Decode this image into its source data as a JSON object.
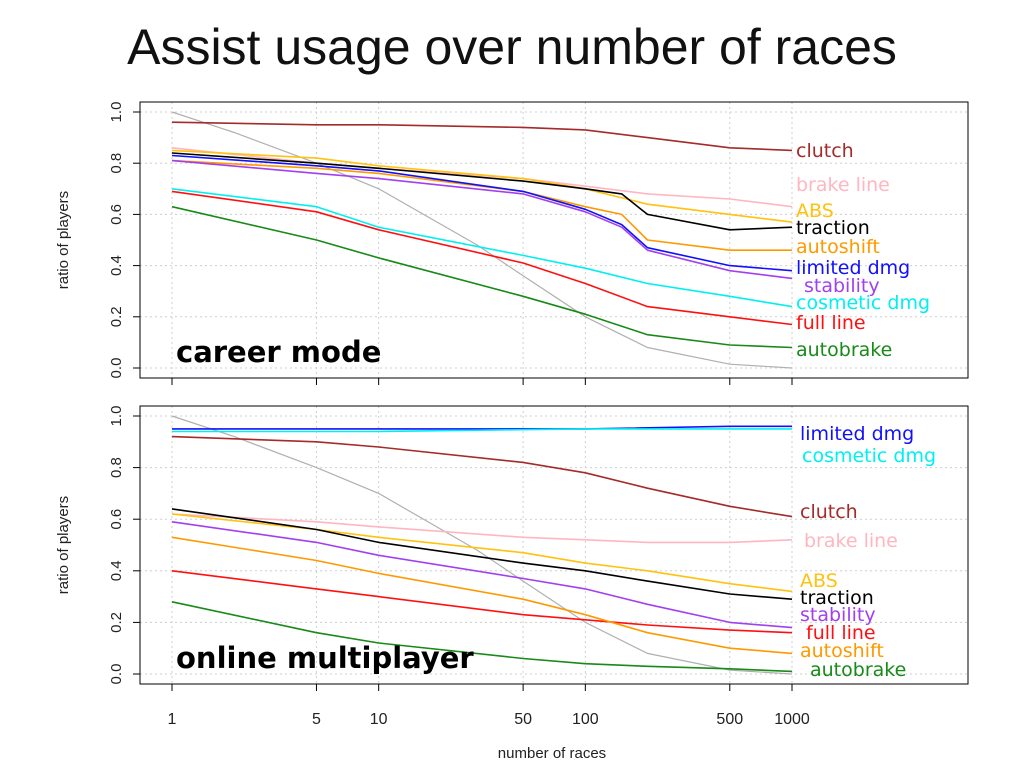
{
  "slide": {
    "title": "Assist usage over number of races"
  },
  "chart_data": {
    "type": "line",
    "x_scale": "log",
    "xlabel": "number of races",
    "x_ticks": [
      1,
      5,
      10,
      50,
      100,
      500,
      1000
    ],
    "xlim": [
      1,
      1000
    ],
    "ylim": [
      0,
      1
    ],
    "y_ticks": [
      "0.0",
      "0.2",
      "0.4",
      "0.6",
      "0.8",
      "1.0"
    ],
    "grid": true,
    "reference_line": {
      "color": "#b0b0b0",
      "points": [
        [
          1,
          1.0
        ],
        [
          2,
          0.92
        ],
        [
          5,
          0.8
        ],
        [
          10,
          0.7
        ],
        [
          30,
          0.48
        ],
        [
          50,
          0.36
        ],
        [
          100,
          0.2
        ],
        [
          200,
          0.08
        ],
        [
          500,
          0.015
        ],
        [
          1000,
          0.0
        ]
      ]
    },
    "panels": [
      {
        "label": "career mode",
        "ylabel": "ratio of players",
        "series": [
          {
            "name": "clutch",
            "color": "#a52a2a",
            "points": [
              [
                1,
                0.96
              ],
              [
                5,
                0.95
              ],
              [
                10,
                0.95
              ],
              [
                50,
                0.94
              ],
              [
                100,
                0.93
              ],
              [
                200,
                0.9
              ],
              [
                500,
                0.86
              ],
              [
                1000,
                0.85
              ]
            ]
          },
          {
            "name": "brake line",
            "color": "#ffb6c1",
            "points": [
              [
                1,
                0.86
              ],
              [
                5,
                0.8
              ],
              [
                10,
                0.78
              ],
              [
                50,
                0.74
              ],
              [
                100,
                0.71
              ],
              [
                200,
                0.68
              ],
              [
                500,
                0.66
              ],
              [
                1000,
                0.63
              ]
            ]
          },
          {
            "name": "ABS",
            "color": "#ffc20e",
            "points": [
              [
                1,
                0.85
              ],
              [
                5,
                0.82
              ],
              [
                10,
                0.79
              ],
              [
                50,
                0.74
              ],
              [
                100,
                0.7
              ],
              [
                200,
                0.64
              ],
              [
                500,
                0.6
              ],
              [
                1000,
                0.57
              ]
            ]
          },
          {
            "name": "traction",
            "color": "#000000",
            "points": [
              [
                1,
                0.84
              ],
              [
                5,
                0.8
              ],
              [
                10,
                0.78
              ],
              [
                50,
                0.73
              ],
              [
                100,
                0.7
              ],
              [
                150,
                0.68
              ],
              [
                200,
                0.6
              ],
              [
                500,
                0.54
              ],
              [
                1000,
                0.55
              ]
            ]
          },
          {
            "name": "autoshift",
            "color": "#ff9900",
            "points": [
              [
                1,
                0.81
              ],
              [
                5,
                0.78
              ],
              [
                10,
                0.76
              ],
              [
                50,
                0.69
              ],
              [
                100,
                0.63
              ],
              [
                150,
                0.6
              ],
              [
                200,
                0.5
              ],
              [
                500,
                0.46
              ],
              [
                1000,
                0.46
              ]
            ]
          },
          {
            "name": "limited dmg",
            "color": "#1010ff",
            "points": [
              [
                1,
                0.83
              ],
              [
                5,
                0.79
              ],
              [
                10,
                0.77
              ],
              [
                50,
                0.69
              ],
              [
                100,
                0.62
              ],
              [
                150,
                0.56
              ],
              [
                200,
                0.47
              ],
              [
                500,
                0.4
              ],
              [
                1000,
                0.38
              ]
            ]
          },
          {
            "name": "stability",
            "color": "#a040f0",
            "points": [
              [
                1,
                0.81
              ],
              [
                5,
                0.76
              ],
              [
                10,
                0.74
              ],
              [
                50,
                0.68
              ],
              [
                100,
                0.61
              ],
              [
                150,
                0.55
              ],
              [
                200,
                0.46
              ],
              [
                500,
                0.38
              ],
              [
                1000,
                0.35
              ]
            ]
          },
          {
            "name": "cosmetic dmg",
            "color": "#00f0f0",
            "points": [
              [
                1,
                0.7
              ],
              [
                5,
                0.63
              ],
              [
                10,
                0.55
              ],
              [
                50,
                0.44
              ],
              [
                100,
                0.39
              ],
              [
                200,
                0.33
              ],
              [
                500,
                0.28
              ],
              [
                1000,
                0.24
              ]
            ]
          },
          {
            "name": "full line",
            "color": "#ff1010",
            "points": [
              [
                1,
                0.69
              ],
              [
                5,
                0.61
              ],
              [
                10,
                0.54
              ],
              [
                50,
                0.41
              ],
              [
                100,
                0.33
              ],
              [
                200,
                0.24
              ],
              [
                500,
                0.2
              ],
              [
                1000,
                0.17
              ]
            ]
          },
          {
            "name": "autobrake",
            "color": "#178a17",
            "points": [
              [
                1,
                0.63
              ],
              [
                5,
                0.5
              ],
              [
                10,
                0.43
              ],
              [
                50,
                0.28
              ],
              [
                100,
                0.21
              ],
              [
                200,
                0.13
              ],
              [
                500,
                0.09
              ],
              [
                1000,
                0.08
              ]
            ]
          }
        ]
      },
      {
        "label": "online multiplayer",
        "ylabel": "ratio of players",
        "series": [
          {
            "name": "limited dmg",
            "color": "#1010ff",
            "points": [
              [
                1,
                0.95
              ],
              [
                10,
                0.95
              ],
              [
                100,
                0.95
              ],
              [
                500,
                0.96
              ],
              [
                1000,
                0.96
              ]
            ]
          },
          {
            "name": "cosmetic dmg",
            "color": "#00f0f0",
            "points": [
              [
                1,
                0.94
              ],
              [
                10,
                0.94
              ],
              [
                100,
                0.95
              ],
              [
                500,
                0.95
              ],
              [
                1000,
                0.95
              ]
            ]
          },
          {
            "name": "clutch",
            "color": "#a52a2a",
            "points": [
              [
                1,
                0.92
              ],
              [
                5,
                0.9
              ],
              [
                10,
                0.88
              ],
              [
                50,
                0.82
              ],
              [
                100,
                0.78
              ],
              [
                200,
                0.72
              ],
              [
                500,
                0.65
              ],
              [
                1000,
                0.61
              ]
            ]
          },
          {
            "name": "brake line",
            "color": "#ffb6c1",
            "points": [
              [
                1,
                0.62
              ],
              [
                5,
                0.59
              ],
              [
                10,
                0.57
              ],
              [
                50,
                0.53
              ],
              [
                100,
                0.52
              ],
              [
                200,
                0.51
              ],
              [
                500,
                0.51
              ],
              [
                1000,
                0.52
              ]
            ]
          },
          {
            "name": "ABS",
            "color": "#ffc20e",
            "points": [
              [
                1,
                0.62
              ],
              [
                5,
                0.56
              ],
              [
                10,
                0.53
              ],
              [
                50,
                0.47
              ],
              [
                100,
                0.43
              ],
              [
                200,
                0.4
              ],
              [
                500,
                0.35
              ],
              [
                1000,
                0.32
              ]
            ]
          },
          {
            "name": "traction",
            "color": "#000000",
            "points": [
              [
                1,
                0.64
              ],
              [
                5,
                0.56
              ],
              [
                10,
                0.51
              ],
              [
                50,
                0.43
              ],
              [
                100,
                0.4
              ],
              [
                200,
                0.36
              ],
              [
                500,
                0.31
              ],
              [
                1000,
                0.29
              ]
            ]
          },
          {
            "name": "stability",
            "color": "#a040f0",
            "points": [
              [
                1,
                0.59
              ],
              [
                5,
                0.51
              ],
              [
                10,
                0.46
              ],
              [
                50,
                0.37
              ],
              [
                100,
                0.33
              ],
              [
                200,
                0.27
              ],
              [
                500,
                0.2
              ],
              [
                1000,
                0.18
              ]
            ]
          },
          {
            "name": "full line",
            "color": "#ff1010",
            "points": [
              [
                1,
                0.4
              ],
              [
                5,
                0.33
              ],
              [
                10,
                0.3
              ],
              [
                50,
                0.23
              ],
              [
                100,
                0.21
              ],
              [
                200,
                0.19
              ],
              [
                500,
                0.17
              ],
              [
                1000,
                0.16
              ]
            ]
          },
          {
            "name": "autoshift",
            "color": "#ff9900",
            "points": [
              [
                1,
                0.53
              ],
              [
                5,
                0.44
              ],
              [
                10,
                0.39
              ],
              [
                50,
                0.29
              ],
              [
                100,
                0.23
              ],
              [
                200,
                0.16
              ],
              [
                500,
                0.1
              ],
              [
                1000,
                0.08
              ]
            ]
          },
          {
            "name": "autobrake",
            "color": "#178a17",
            "points": [
              [
                1,
                0.28
              ],
              [
                5,
                0.16
              ],
              [
                10,
                0.12
              ],
              [
                50,
                0.06
              ],
              [
                100,
                0.04
              ],
              [
                200,
                0.03
              ],
              [
                500,
                0.02
              ],
              [
                1000,
                0.01
              ]
            ]
          }
        ]
      }
    ]
  }
}
